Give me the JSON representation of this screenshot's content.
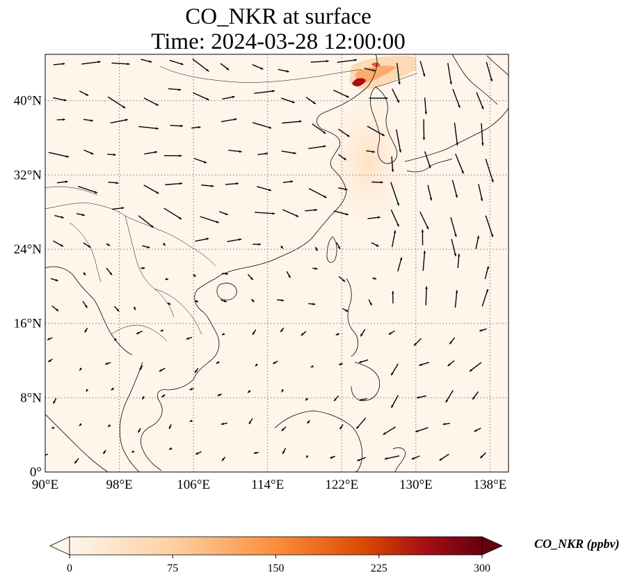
{
  "title_line1": "CO_NKR at surface",
  "title_line2": "Time: 2024-03-28 12:00:00",
  "colorbar": {
    "label": "CO_NKR (ppbv)",
    "ticks": [
      "0",
      "75",
      "150",
      "225",
      "300"
    ],
    "min": 0,
    "max": 300,
    "colors": [
      "#fff5eb",
      "#fdd0a2",
      "#fd8d3c",
      "#d94801",
      "#a50f15",
      "#67000d"
    ]
  },
  "map": {
    "lon_range": [
      90,
      140
    ],
    "lat_range": [
      0,
      45
    ],
    "lon_ticks": [
      {
        "value": 90,
        "label": "90°E"
      },
      {
        "value": 98,
        "label": "98°E"
      },
      {
        "value": 106,
        "label": "106°E"
      },
      {
        "value": 114,
        "label": "114°E"
      },
      {
        "value": 122,
        "label": "122°E"
      },
      {
        "value": 130,
        "label": "130°E"
      },
      {
        "value": 138,
        "label": "138°E"
      }
    ],
    "lat_ticks": [
      {
        "value": 0,
        "label": "0°"
      },
      {
        "value": 8,
        "label": "8°N"
      },
      {
        "value": 16,
        "label": "16°N"
      },
      {
        "value": 24,
        "label": "24°N"
      },
      {
        "value": 32,
        "label": "32°N"
      },
      {
        "value": 40,
        "label": "40°N"
      }
    ],
    "background_color": "#fff5eb",
    "gridlines": "dotted"
  }
}
